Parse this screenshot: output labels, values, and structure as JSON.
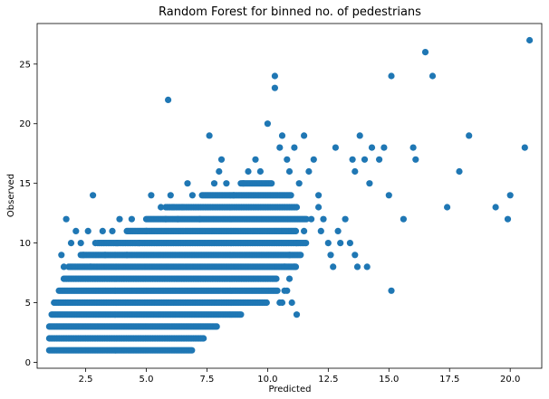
{
  "chart_data": {
    "type": "scatter",
    "title": "Random Forest for binned no. of pedestrians",
    "xlabel": "Predicted",
    "ylabel": "Observed",
    "xlim": [
      0.5,
      21.3
    ],
    "ylim": [
      -0.5,
      28.4
    ],
    "grid": false,
    "marker_color": "#1f77b4",
    "x_ticks": [
      2.5,
      5.0,
      7.5,
      10.0,
      12.5,
      15.0,
      17.5,
      20.0
    ],
    "x_tick_labels": [
      "2.5",
      "5.0",
      "7.5",
      "10.0",
      "12.5",
      "15.0",
      "17.5",
      "20.0"
    ],
    "y_ticks": [
      0,
      5,
      10,
      15,
      20,
      25
    ],
    "y_tick_labels": [
      "0",
      "5",
      "10",
      "15",
      "20",
      "25"
    ],
    "bands": [
      {
        "y": 1,
        "x_from": 1.0,
        "x_to": 6.9
      },
      {
        "y": 2,
        "x_from": 1.0,
        "x_to": 7.4
      },
      {
        "y": 3,
        "x_from": 1.0,
        "x_to": 7.9
      },
      {
        "y": 4,
        "x_from": 1.1,
        "x_to": 8.9
      },
      {
        "y": 5,
        "x_from": 1.2,
        "x_to": 10.0
      },
      {
        "y": 6,
        "x_from": 1.4,
        "x_to": 10.4
      },
      {
        "y": 7,
        "x_from": 1.6,
        "x_to": 10.4
      },
      {
        "y": 8,
        "x_from": 1.8,
        "x_to": 11.2
      },
      {
        "y": 9,
        "x_from": 2.3,
        "x_to": 11.4
      },
      {
        "y": 10,
        "x_from": 3.0,
        "x_to": 11.6
      },
      {
        "y": 11,
        "x_from": 4.2,
        "x_to": 11.2
      },
      {
        "y": 12,
        "x_from": 5.0,
        "x_to": 11.6
      },
      {
        "y": 13,
        "x_from": 5.8,
        "x_to": 11.2
      },
      {
        "y": 14,
        "x_from": 7.3,
        "x_to": 11.0
      },
      {
        "y": 15,
        "x_from": 8.9,
        "x_to": 10.2
      }
    ],
    "points": [
      [
        1.5,
        9
      ],
      [
        1.6,
        8
      ],
      [
        1.7,
        12
      ],
      [
        1.9,
        10
      ],
      [
        2.1,
        11
      ],
      [
        2.3,
        10
      ],
      [
        2.4,
        9
      ],
      [
        2.6,
        11
      ],
      [
        2.7,
        8
      ],
      [
        2.8,
        14
      ],
      [
        2.9,
        10
      ],
      [
        3.2,
        11
      ],
      [
        3.3,
        9
      ],
      [
        3.6,
        11
      ],
      [
        3.8,
        10
      ],
      [
        3.9,
        12
      ],
      [
        4.2,
        9
      ],
      [
        4.4,
        12
      ],
      [
        4.7,
        10
      ],
      [
        5.0,
        11
      ],
      [
        5.2,
        14
      ],
      [
        5.6,
        13
      ],
      [
        5.8,
        12
      ],
      [
        5.9,
        22
      ],
      [
        6.0,
        14
      ],
      [
        6.1,
        13
      ],
      [
        6.3,
        12
      ],
      [
        6.5,
        13
      ],
      [
        6.7,
        15
      ],
      [
        6.9,
        14
      ],
      [
        7.2,
        12
      ],
      [
        7.6,
        19
      ],
      [
        7.8,
        15
      ],
      [
        8.0,
        16
      ],
      [
        8.1,
        17
      ],
      [
        8.3,
        15
      ],
      [
        8.6,
        14
      ],
      [
        9.0,
        15
      ],
      [
        9.2,
        16
      ],
      [
        9.5,
        17
      ],
      [
        9.7,
        16
      ],
      [
        10.0,
        20
      ],
      [
        10.3,
        24
      ],
      [
        10.3,
        23
      ],
      [
        10.5,
        18
      ],
      [
        10.6,
        19
      ],
      [
        10.8,
        17
      ],
      [
        10.9,
        16
      ],
      [
        11.1,
        18
      ],
      [
        11.3,
        15
      ],
      [
        11.5,
        19
      ],
      [
        11.7,
        16
      ],
      [
        11.9,
        17
      ],
      [
        12.1,
        13
      ],
      [
        12.1,
        14
      ],
      [
        11.8,
        12
      ],
      [
        11.5,
        11
      ],
      [
        11.2,
        10
      ],
      [
        10.9,
        7
      ],
      [
        10.7,
        8
      ],
      [
        11.1,
        8
      ],
      [
        11.0,
        5
      ],
      [
        10.6,
        5
      ],
      [
        10.8,
        6
      ],
      [
        11.2,
        4
      ],
      [
        10.7,
        6
      ],
      [
        10.5,
        5
      ],
      [
        10.9,
        9
      ],
      [
        12.2,
        11
      ],
      [
        12.3,
        12
      ],
      [
        12.5,
        10
      ],
      [
        12.6,
        9
      ],
      [
        12.7,
        8
      ],
      [
        12.9,
        11
      ],
      [
        13.0,
        10
      ],
      [
        13.2,
        12
      ],
      [
        13.4,
        10
      ],
      [
        13.6,
        9
      ],
      [
        13.7,
        8
      ],
      [
        12.8,
        18
      ],
      [
        13.5,
        17
      ],
      [
        13.6,
        16
      ],
      [
        13.8,
        19
      ],
      [
        14.0,
        17
      ],
      [
        14.3,
        18
      ],
      [
        14.2,
        15
      ],
      [
        14.1,
        8
      ],
      [
        14.6,
        17
      ],
      [
        14.8,
        18
      ],
      [
        15.0,
        14
      ],
      [
        15.1,
        24
      ],
      [
        15.1,
        6
      ],
      [
        15.6,
        12
      ],
      [
        16.0,
        18
      ],
      [
        16.1,
        17
      ],
      [
        16.5,
        26
      ],
      [
        16.8,
        24
      ],
      [
        17.4,
        13
      ],
      [
        17.9,
        16
      ],
      [
        18.3,
        19
      ],
      [
        19.4,
        13
      ],
      [
        19.9,
        12
      ],
      [
        20.0,
        14
      ],
      [
        20.6,
        18
      ],
      [
        20.8,
        27
      ]
    ]
  }
}
